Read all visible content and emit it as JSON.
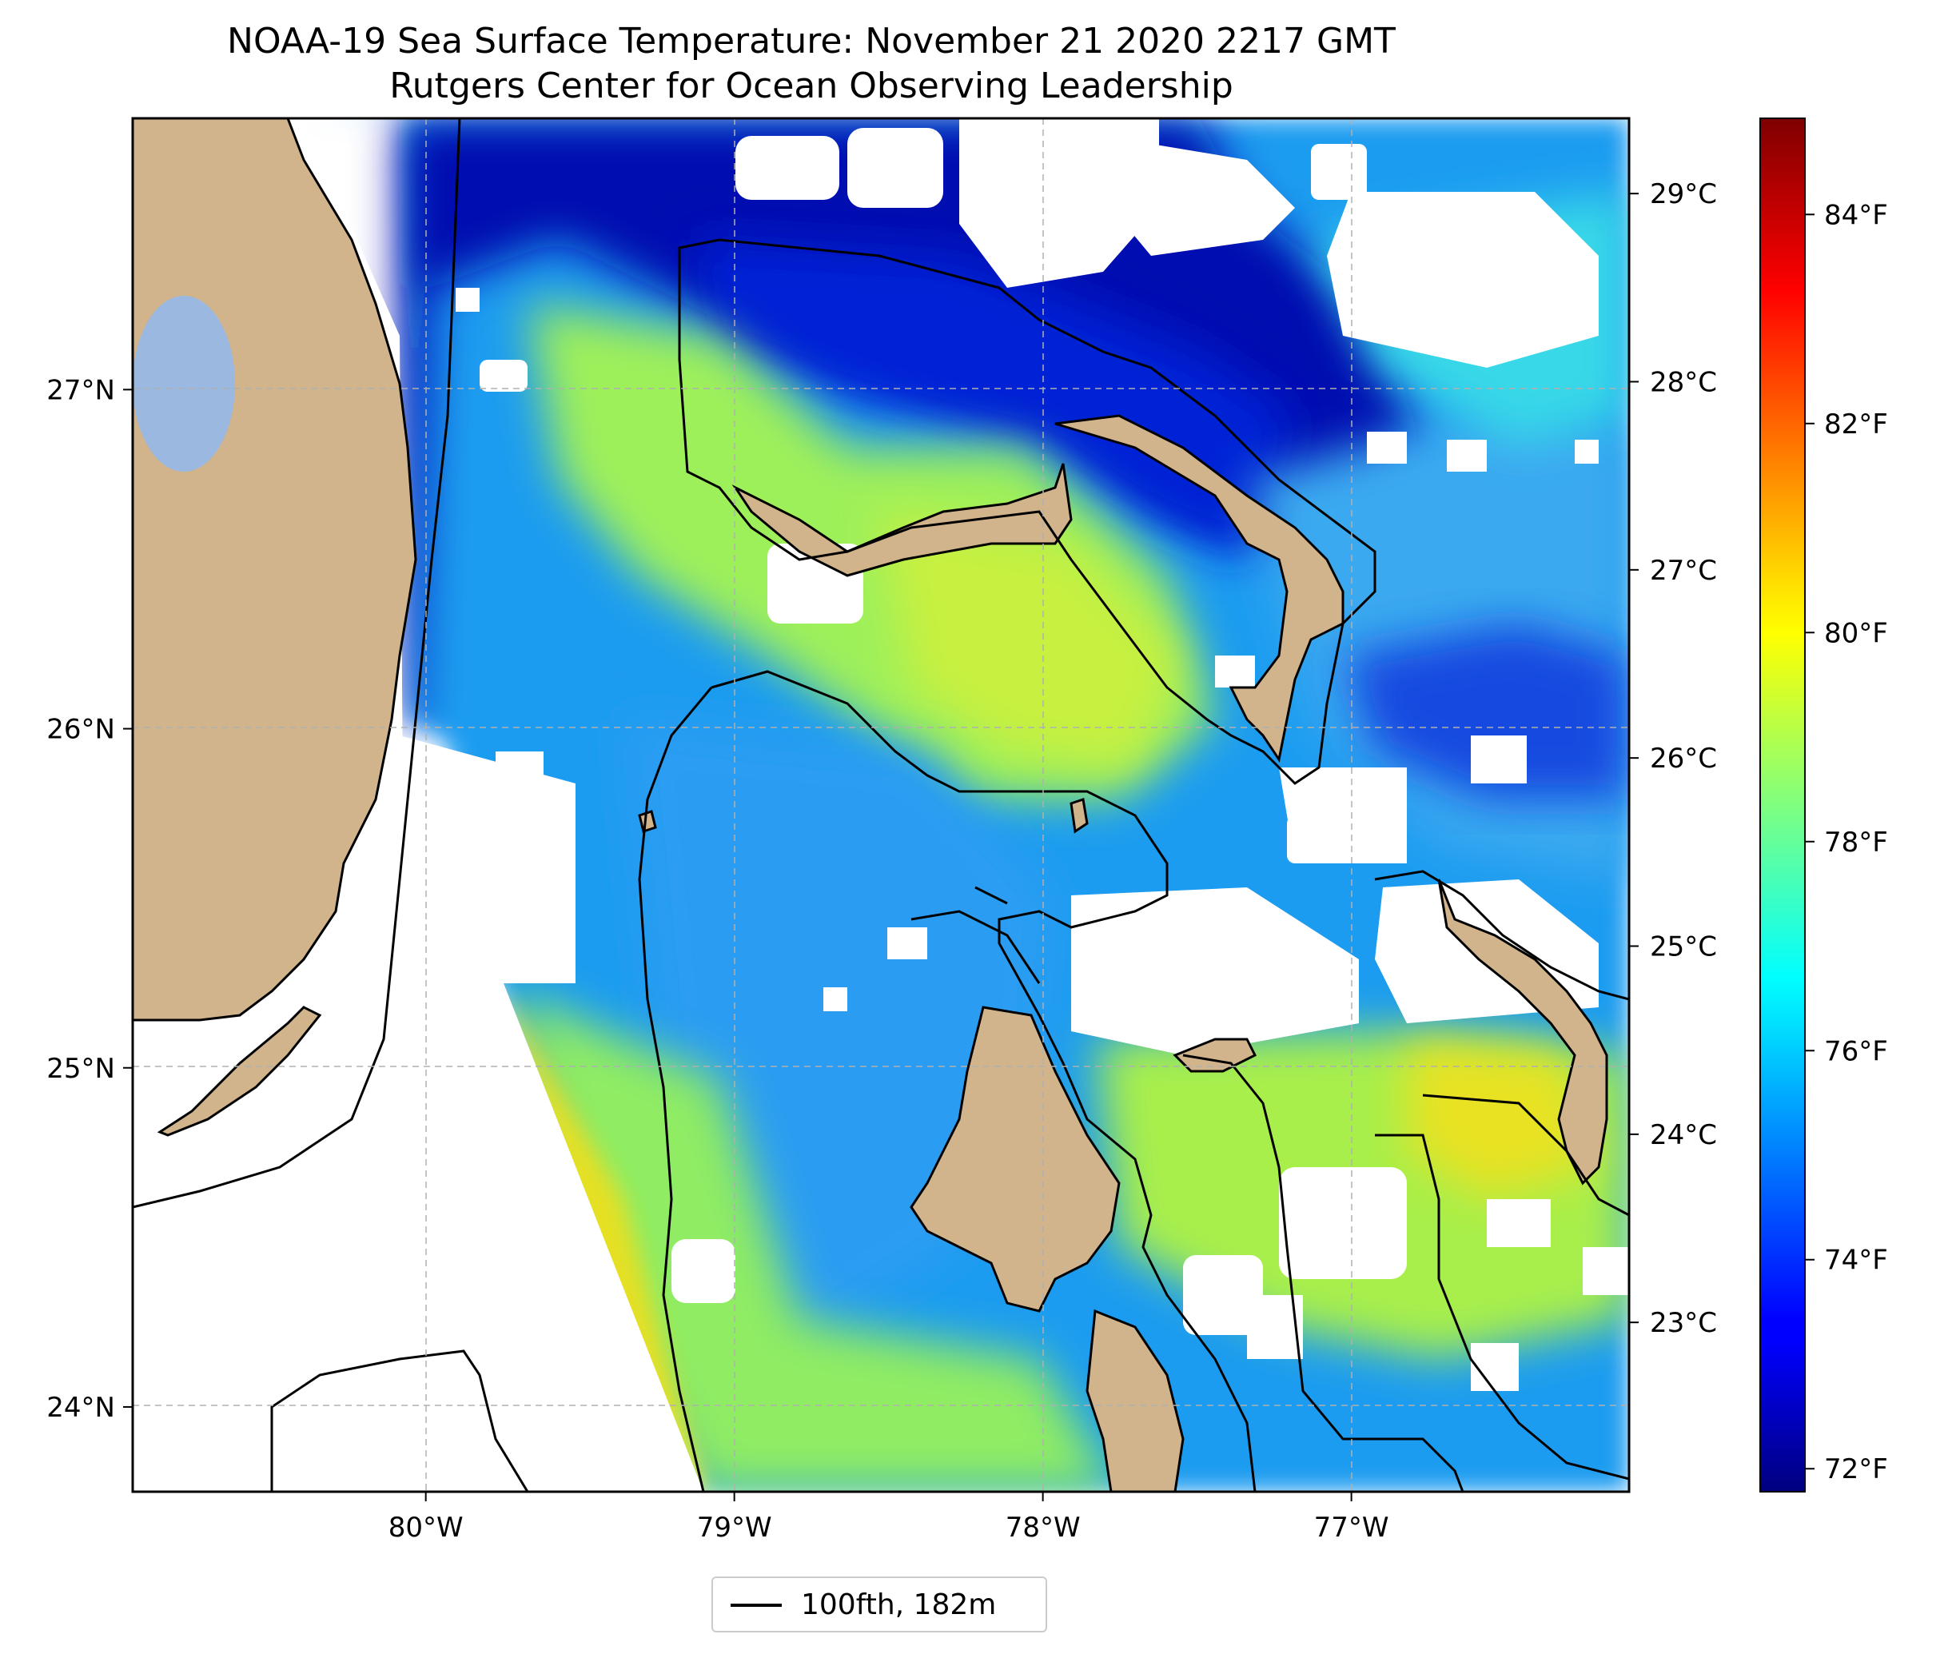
{
  "title": {
    "line1": "NOAA-19 Sea Surface Temperature: November 21 2020 2217 GMT",
    "line2": "Rutgers Center for Ocean Observing Leadership"
  },
  "map": {
    "lon_range": [
      -80.95,
      -76.1
    ],
    "lat_range": [
      23.75,
      27.8
    ],
    "lon_ticks": [
      {
        "value": -80,
        "label": "80°W"
      },
      {
        "value": -79,
        "label": "79°W"
      },
      {
        "value": -78,
        "label": "78°W"
      },
      {
        "value": -77,
        "label": "77°W"
      }
    ],
    "lat_ticks": [
      {
        "value": 27,
        "label": "27°N"
      },
      {
        "value": 26,
        "label": "26°N"
      },
      {
        "value": 25,
        "label": "25°N"
      },
      {
        "value": 24,
        "label": "24°N"
      }
    ],
    "gridlines": "dashed",
    "colors": {
      "land": "#d2b48c",
      "lake": "#9ab8e0",
      "no_data": "#ffffff",
      "isobath": "#000000"
    }
  },
  "colorbar": {
    "colormap": "jet",
    "range_c": [
      22.1,
      29.4
    ],
    "celsius_ticks": [
      {
        "value": 29,
        "label": "29°C"
      },
      {
        "value": 28,
        "label": "28°C"
      },
      {
        "value": 27,
        "label": "27°C"
      },
      {
        "value": 26,
        "label": "26°C"
      },
      {
        "value": 25,
        "label": "25°C"
      },
      {
        "value": 24,
        "label": "24°C"
      },
      {
        "value": 23,
        "label": "23°C"
      }
    ],
    "fahrenheit_ticks": [
      {
        "value": 84,
        "label": "84°F"
      },
      {
        "value": 82,
        "label": "82°F"
      },
      {
        "value": 80,
        "label": "80°F"
      },
      {
        "value": 78,
        "label": "78°F"
      },
      {
        "value": 76,
        "label": "76°F"
      },
      {
        "value": 74,
        "label": "74°F"
      },
      {
        "value": 72,
        "label": "72°F"
      }
    ]
  },
  "legend": {
    "entry": "100fth, 182m",
    "position": "bottom-center"
  }
}
